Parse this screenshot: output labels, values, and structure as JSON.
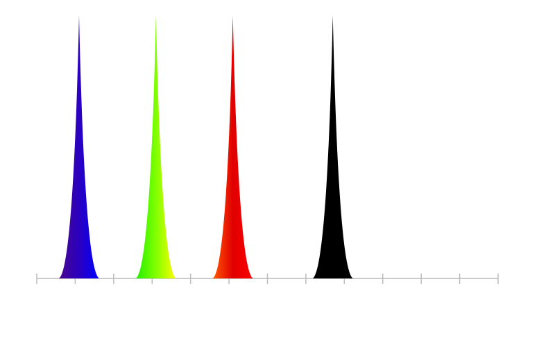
{
  "chart_data": {
    "type": "spike",
    "x": [
      1.1,
      3.1,
      5.1,
      7.7
    ],
    "values": [
      1,
      1,
      1,
      1
    ],
    "colors": [
      [
        "#4a0a8a",
        "#2a00c0",
        "#0000ff"
      ],
      [
        "#22ee00",
        "#80ff00",
        "#ffff00"
      ],
      [
        "#ff5a00",
        "#e00000",
        "#ff0000"
      ],
      [
        "#000000",
        "#000000",
        "#000000"
      ]
    ],
    "xlim": [
      0,
      12
    ],
    "xticks": [
      0,
      1,
      2,
      3,
      4,
      5,
      6,
      7,
      8,
      9,
      10,
      11,
      12
    ],
    "ylim": [
      0,
      1
    ]
  }
}
